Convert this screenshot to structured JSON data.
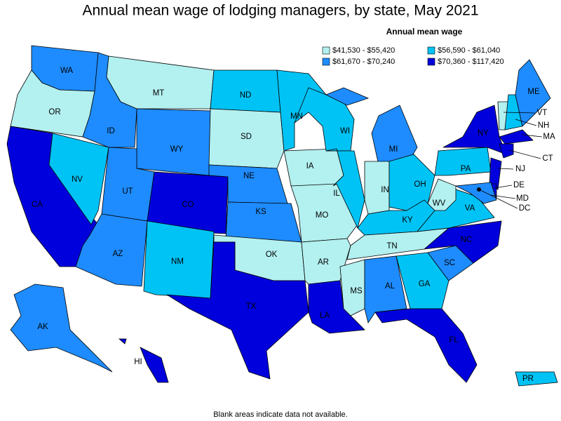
{
  "title": "Annual mean wage of lodging managers, by state, May 2021",
  "legend": {
    "title": "Annual mean wage",
    "items": [
      {
        "label": "$41,530 - $55,420",
        "color": "#b3f0f0"
      },
      {
        "label": "$56,590 - $61,040",
        "color": "#00c3f5"
      },
      {
        "label": "$61,670 - $70,240",
        "color": "#1e8cff"
      },
      {
        "label": "$70,360 - $117,420",
        "color": "#0000dc"
      }
    ]
  },
  "states": [
    {
      "abbr": "WA",
      "class": 2
    },
    {
      "abbr": "OR",
      "class": 0
    },
    {
      "abbr": "CA",
      "class": 3
    },
    {
      "abbr": "NV",
      "class": 1
    },
    {
      "abbr": "ID",
      "class": 2
    },
    {
      "abbr": "MT",
      "class": 0
    },
    {
      "abbr": "WY",
      "class": 2
    },
    {
      "abbr": "UT",
      "class": 2
    },
    {
      "abbr": "CO",
      "class": 3
    },
    {
      "abbr": "AZ",
      "class": 2
    },
    {
      "abbr": "NM",
      "class": 1
    },
    {
      "abbr": "ND",
      "class": 1
    },
    {
      "abbr": "SD",
      "class": 0
    },
    {
      "abbr": "NE",
      "class": 2
    },
    {
      "abbr": "KS",
      "class": 2
    },
    {
      "abbr": "OK",
      "class": 0
    },
    {
      "abbr": "TX",
      "class": 3
    },
    {
      "abbr": "MN",
      "class": 1
    },
    {
      "abbr": "IA",
      "class": 0
    },
    {
      "abbr": "MO",
      "class": 0
    },
    {
      "abbr": "AR",
      "class": 0
    },
    {
      "abbr": "LA",
      "class": 3
    },
    {
      "abbr": "WI",
      "class": 1
    },
    {
      "abbr": "IL",
      "class": 1
    },
    {
      "abbr": "MI",
      "class": 2
    },
    {
      "abbr": "IN",
      "class": 0
    },
    {
      "abbr": "OH",
      "class": 1
    },
    {
      "abbr": "KY",
      "class": 1
    },
    {
      "abbr": "TN",
      "class": 0
    },
    {
      "abbr": "MS",
      "class": 0
    },
    {
      "abbr": "AL",
      "class": 2
    },
    {
      "abbr": "GA",
      "class": 1
    },
    {
      "abbr": "FL",
      "class": 3
    },
    {
      "abbr": "SC",
      "class": 2
    },
    {
      "abbr": "NC",
      "class": 3
    },
    {
      "abbr": "VA",
      "class": 1
    },
    {
      "abbr": "WV",
      "class": 0
    },
    {
      "abbr": "PA",
      "class": 1
    },
    {
      "abbr": "NY",
      "class": 3
    },
    {
      "abbr": "VT",
      "class": 0
    },
    {
      "abbr": "NH",
      "class": 1
    },
    {
      "abbr": "ME",
      "class": 2
    },
    {
      "abbr": "MA",
      "class": 3
    },
    {
      "abbr": "CT",
      "class": 3
    },
    {
      "abbr": "NJ",
      "class": 3
    },
    {
      "abbr": "DE",
      "class": 3
    },
    {
      "abbr": "MD",
      "class": 2
    },
    {
      "abbr": "DC",
      "class": 3
    },
    {
      "abbr": "AK",
      "class": 2
    },
    {
      "abbr": "HI",
      "class": 3
    },
    {
      "abbr": "PR",
      "class": 1
    }
  ],
  "note": "Blank areas indicate data not available."
}
